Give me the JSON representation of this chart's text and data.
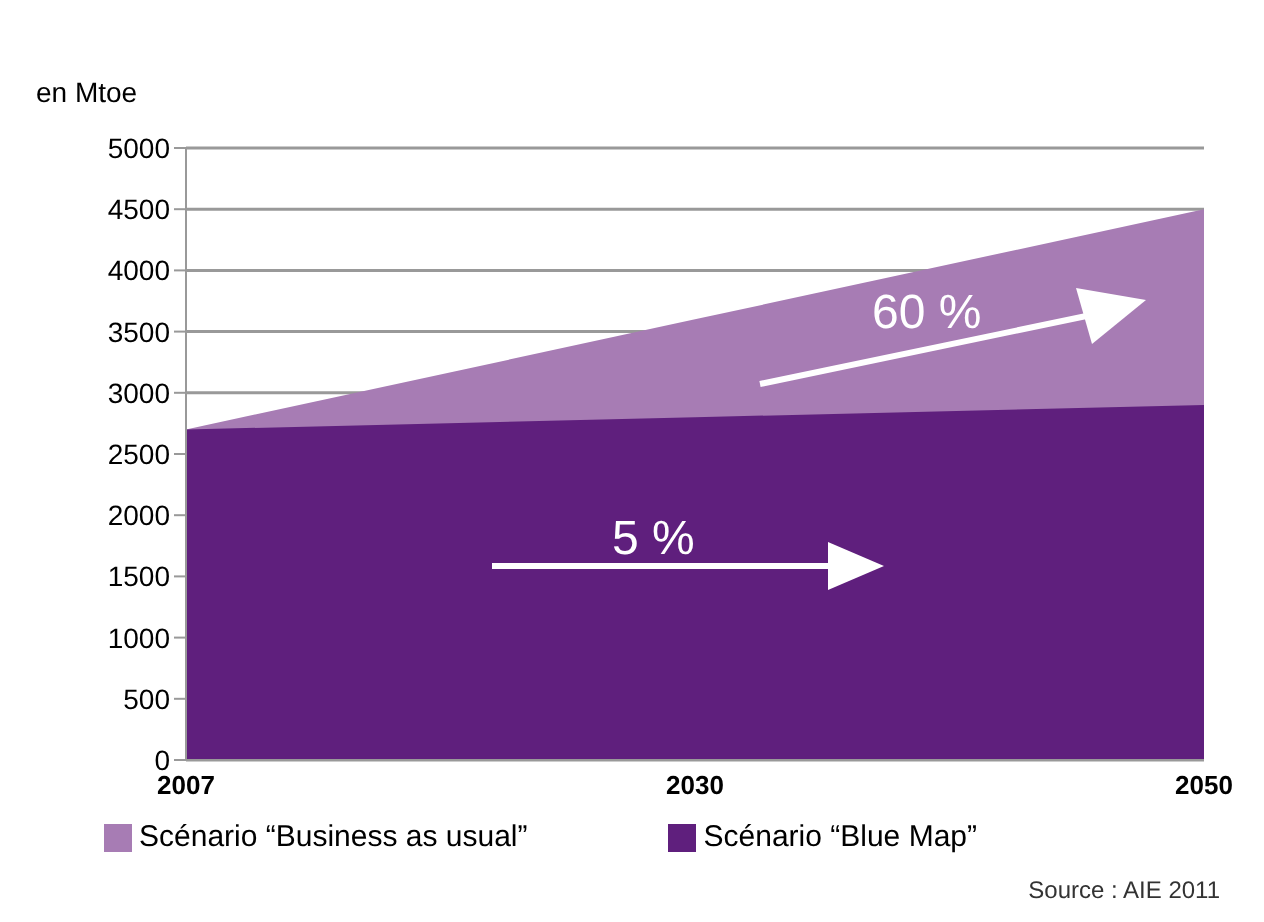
{
  "chart_data": {
    "type": "area",
    "ylabel": "en Mtoe",
    "categories": [
      "2007",
      "2030",
      "2050"
    ],
    "series": [
      {
        "name": "Scénario “Blue Map”",
        "color": "#5f1f7d",
        "values": [
          2700,
          2800,
          2900
        ]
      },
      {
        "name": "Scénario “Business as usual”",
        "color": "#a77cb4",
        "values": [
          2700,
          3600,
          4500
        ]
      }
    ],
    "ylim": [
      0,
      5000
    ],
    "yticks": [
      0,
      500,
      1000,
      1500,
      2000,
      2500,
      3000,
      3500,
      4000,
      4500,
      5000
    ],
    "grid": "y",
    "legend": "bottom",
    "annotations": [
      "5 %",
      "60 %",
      "Source : AIE 2011"
    ]
  }
}
